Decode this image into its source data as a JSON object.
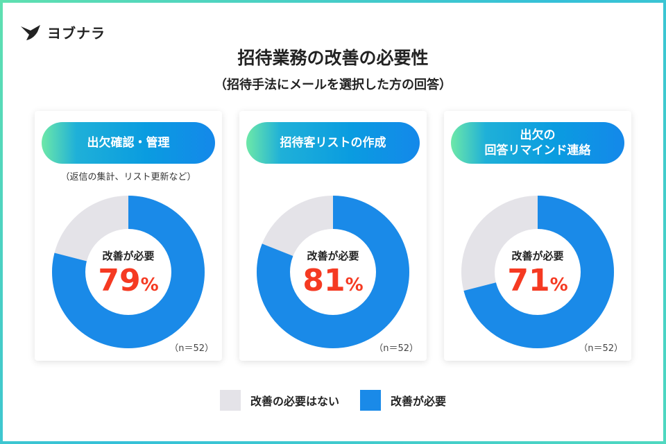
{
  "brand": "ヨブナラ",
  "colors": {
    "need": "#1a8ae8",
    "no_need": "#e4e3e8",
    "highlight": "#f53a22"
  },
  "chart_data": {
    "type": "pie",
    "title": "招待業務の改善の必要性",
    "subtitle": "（招待手法にメールを選択した方の回答）",
    "legend": [
      "改善の必要はない",
      "改善が必要"
    ],
    "legend_position": "bottom",
    "center_label": "改善が必要",
    "charts": [
      {
        "category": "出欠確認・管理",
        "note": "（返信の集計、リスト更新など）",
        "need": 79,
        "no_need": 21,
        "n": "（n＝52）"
      },
      {
        "category": "招待客リストの作成",
        "note": "",
        "need": 81,
        "no_need": 19,
        "n": "（n＝52）"
      },
      {
        "category": "出欠の\n回答リマインド連絡",
        "note": "",
        "need": 71,
        "no_need": 29,
        "n": "（n＝52）"
      }
    ]
  }
}
